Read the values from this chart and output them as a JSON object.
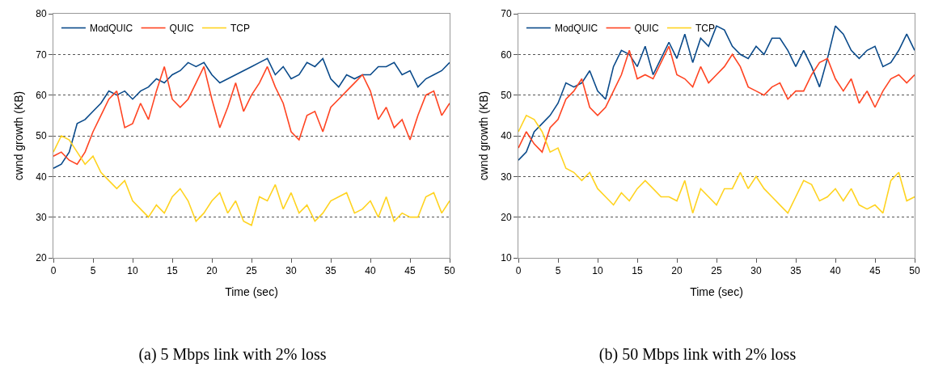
{
  "chart_data": [
    {
      "type": "line",
      "title": "(a) 5 Mbps link with 2% loss",
      "xlabel": "Time (sec)",
      "ylabel": "cwnd growth (KB)",
      "x": [
        0,
        1,
        2,
        3,
        4,
        5,
        6,
        7,
        8,
        9,
        10,
        11,
        12,
        13,
        14,
        15,
        16,
        17,
        18,
        19,
        20,
        21,
        22,
        23,
        24,
        25,
        26,
        27,
        28,
        29,
        30,
        31,
        32,
        33,
        34,
        35,
        36,
        37,
        38,
        39,
        40,
        41,
        42,
        43,
        44,
        45,
        46,
        47,
        48,
        49,
        50
      ],
      "xlim": [
        0,
        50
      ],
      "xticks": [
        0,
        5,
        10,
        15,
        20,
        25,
        30,
        35,
        40,
        45,
        50
      ],
      "ylim": [
        20,
        80
      ],
      "yticks": [
        20,
        30,
        40,
        50,
        60,
        70,
        80
      ],
      "grid": "y",
      "legend": "top left",
      "marker": "none",
      "line_style": "solid",
      "series": [
        {
          "name": "ModQUIC",
          "color": "#0a4a8a",
          "values": [
            42,
            43,
            46,
            53,
            54,
            56,
            58,
            61,
            60,
            61,
            59,
            61,
            62,
            64,
            63,
            65,
            66,
            68,
            67,
            68,
            65,
            63,
            64,
            65,
            66,
            67,
            68,
            69,
            65,
            67,
            64,
            65,
            68,
            67,
            69,
            64,
            62,
            65,
            64,
            65,
            65,
            67,
            67,
            68,
            65,
            66,
            62,
            64,
            65,
            66,
            68
          ]
        },
        {
          "name": "QUIC",
          "color": "#ff4422",
          "values": [
            45,
            46,
            44,
            43,
            46,
            51,
            55,
            59,
            61,
            52,
            53,
            58,
            54,
            61,
            67,
            59,
            57,
            59,
            63,
            67,
            59,
            52,
            57,
            63,
            56,
            60,
            63,
            67,
            62,
            58,
            51,
            49,
            55,
            56,
            51,
            57,
            59,
            61,
            63,
            65,
            61,
            54,
            57,
            52,
            54,
            49,
            55,
            60,
            61,
            55,
            58
          ]
        },
        {
          "name": "TCP",
          "color": "#ffd320",
          "values": [
            46,
            50,
            49,
            46,
            43,
            45,
            41,
            39,
            37,
            39,
            34,
            32,
            30,
            33,
            31,
            35,
            37,
            34,
            29,
            31,
            34,
            36,
            31,
            34,
            29,
            28,
            35,
            34,
            38,
            32,
            36,
            31,
            33,
            29,
            31,
            34,
            35,
            36,
            31,
            32,
            34,
            30,
            35,
            29,
            31,
            30,
            30,
            35,
            36,
            31,
            34
          ]
        }
      ]
    },
    {
      "type": "line",
      "title": "(b) 50 Mbps link with 2% loss",
      "xlabel": "Time (sec)",
      "ylabel": "cwnd growth (KB)",
      "x": [
        0,
        1,
        2,
        3,
        4,
        5,
        6,
        7,
        8,
        9,
        10,
        11,
        12,
        13,
        14,
        15,
        16,
        17,
        18,
        19,
        20,
        21,
        22,
        23,
        24,
        25,
        26,
        27,
        28,
        29,
        30,
        31,
        32,
        33,
        34,
        35,
        36,
        37,
        38,
        39,
        40,
        41,
        42,
        43,
        44,
        45,
        46,
        47,
        48,
        49,
        50
      ],
      "xlim": [
        0,
        50
      ],
      "xticks": [
        0,
        5,
        10,
        15,
        20,
        25,
        30,
        35,
        40,
        45,
        50
      ],
      "ylim": [
        10,
        70
      ],
      "yticks": [
        10,
        20,
        30,
        40,
        50,
        60,
        70
      ],
      "grid": "y",
      "legend": "top left",
      "marker": "none",
      "line_style": "solid",
      "series": [
        {
          "name": "ModQUIC",
          "color": "#0a4a8a",
          "values": [
            34,
            36,
            41,
            43,
            45,
            48,
            53,
            52,
            53,
            56,
            51,
            49,
            57,
            61,
            60,
            57,
            62,
            55,
            59,
            63,
            59,
            65,
            58,
            64,
            62,
            67,
            66,
            62,
            60,
            59,
            62,
            60,
            64,
            64,
            61,
            57,
            61,
            57,
            52,
            59,
            67,
            65,
            61,
            59,
            61,
            62,
            57,
            58,
            61,
            65,
            61
          ]
        },
        {
          "name": "QUIC",
          "color": "#ff4422",
          "values": [
            37,
            41,
            38,
            36,
            42,
            44,
            49,
            51,
            54,
            47,
            45,
            47,
            51,
            55,
            61,
            54,
            55,
            54,
            58,
            62,
            55,
            54,
            52,
            57,
            53,
            55,
            57,
            60,
            57,
            52,
            51,
            50,
            52,
            53,
            49,
            51,
            51,
            55,
            58,
            59,
            54,
            51,
            54,
            48,
            51,
            47,
            51,
            54,
            55,
            53,
            55
          ]
        },
        {
          "name": "TCP",
          "color": "#ffd320",
          "values": [
            41,
            45,
            44,
            41,
            36,
            37,
            32,
            31,
            29,
            31,
            27,
            25,
            23,
            26,
            24,
            27,
            29,
            27,
            25,
            25,
            24,
            29,
            21,
            27,
            25,
            23,
            27,
            27,
            31,
            27,
            30,
            27,
            25,
            23,
            21,
            25,
            29,
            28,
            24,
            25,
            27,
            24,
            27,
            23,
            22,
            23,
            21,
            29,
            31,
            24,
            25
          ]
        }
      ]
    }
  ]
}
